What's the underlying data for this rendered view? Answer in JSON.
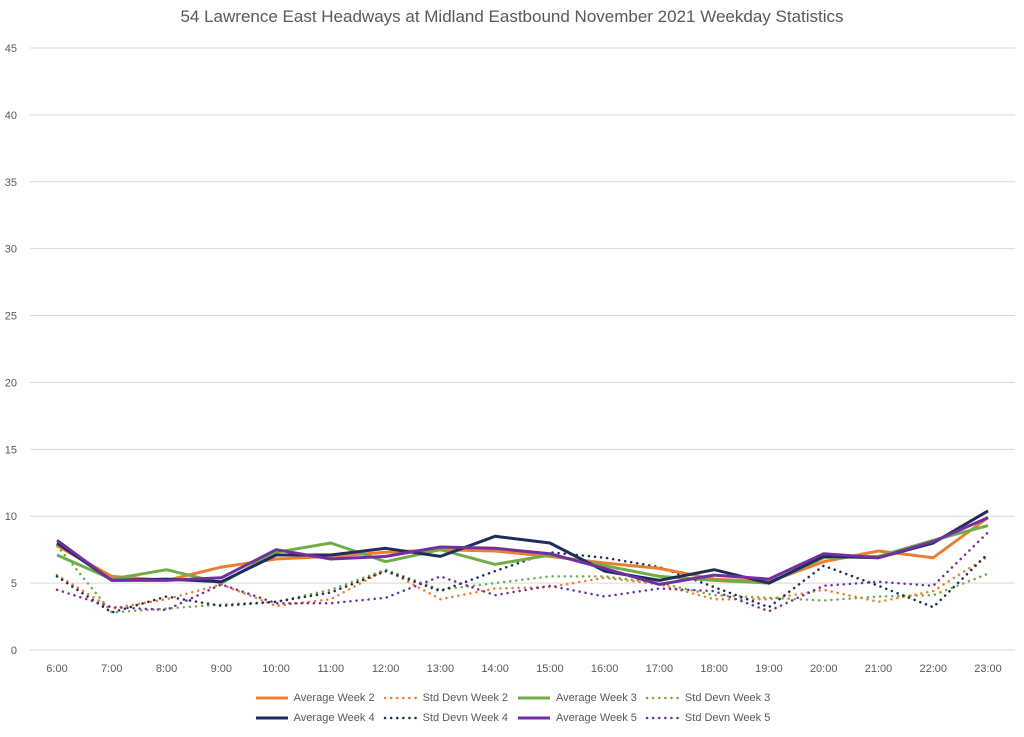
{
  "chart_data": {
    "type": "line",
    "title": "54 Lawrence East Headways at Midland Eastbound November 2021 Weekday Statistics",
    "xlabel": "",
    "ylabel": "",
    "ylim": [
      0,
      45
    ],
    "yticks": [
      "0",
      "5",
      "10",
      "15",
      "20",
      "25",
      "30",
      "35",
      "40",
      "45"
    ],
    "ytick_values": [
      0,
      5,
      10,
      15,
      20,
      25,
      30,
      35,
      40,
      45
    ],
    "grid": true,
    "legend_position": "bottom",
    "categories": [
      "6:00",
      "7:00",
      "8:00",
      "9:00",
      "10:00",
      "11:00",
      "12:00",
      "13:00",
      "14:00",
      "15:00",
      "16:00",
      "17:00",
      "18:00",
      "19:00",
      "20:00",
      "21:00",
      "22:00",
      "23:00"
    ],
    "series": [
      {
        "name": "Average Week 2",
        "color": "#ED7D31",
        "style": "solid",
        "values": [
          7.8,
          5.5,
          5.2,
          6.2,
          6.8,
          7.0,
          7.3,
          7.5,
          7.4,
          7.0,
          6.5,
          6.1,
          5.3,
          5.1,
          6.6,
          7.4,
          6.9,
          9.9
        ]
      },
      {
        "name": "Std Devn Week 2",
        "color": "#ED7D31",
        "style": "dotted",
        "values": [
          5.6,
          3.1,
          3.8,
          4.9,
          3.3,
          3.8,
          6.0,
          3.8,
          4.6,
          4.7,
          5.4,
          4.9,
          3.8,
          3.8,
          4.5,
          3.6,
          4.4,
          7.0
        ]
      },
      {
        "name": "Average Week 3",
        "color": "#70AD47",
        "style": "solid",
        "values": [
          7.1,
          5.3,
          6.0,
          5.0,
          7.3,
          8.0,
          6.6,
          7.5,
          6.4,
          7.1,
          6.3,
          5.5,
          5.2,
          5.0,
          6.9,
          7.0,
          8.2,
          9.3
        ]
      },
      {
        "name": "Std Devn Week 3",
        "color": "#70AD47",
        "style": "dotted",
        "values": [
          7.8,
          2.8,
          3.1,
          3.4,
          3.6,
          4.5,
          6.0,
          4.5,
          5.0,
          5.5,
          5.5,
          5.0,
          4.1,
          3.9,
          3.7,
          4.0,
          4.1,
          5.7
        ]
      },
      {
        "name": "Average Week 4",
        "color": "#1F2D5C",
        "style": "solid",
        "values": [
          8.0,
          5.2,
          5.3,
          5.1,
          7.1,
          7.1,
          7.6,
          7.0,
          8.5,
          8.0,
          5.9,
          5.2,
          6.0,
          5.0,
          7.0,
          6.9,
          8.0,
          10.4
        ]
      },
      {
        "name": "Std Devn Week 4",
        "color": "#1F2D5C",
        "style": "dotted",
        "values": [
          5.5,
          2.8,
          4.0,
          3.3,
          3.6,
          4.3,
          5.9,
          4.4,
          5.9,
          7.3,
          6.9,
          6.2,
          4.7,
          3.2,
          6.3,
          4.8,
          3.2,
          7.2
        ]
      },
      {
        "name": "Average Week 5",
        "color": "#7030A0",
        "style": "solid",
        "values": [
          8.2,
          5.2,
          5.2,
          5.4,
          7.5,
          6.8,
          7.0,
          7.7,
          7.6,
          7.2,
          6.1,
          4.9,
          5.6,
          5.3,
          7.2,
          6.9,
          8.1,
          9.9
        ]
      },
      {
        "name": "Std Devn Week 5",
        "color": "#7030A0",
        "style": "dotted",
        "values": [
          4.5,
          3.2,
          3.0,
          4.9,
          3.5,
          3.5,
          3.9,
          5.5,
          4.1,
          4.8,
          4.0,
          4.6,
          4.4,
          2.9,
          4.8,
          5.1,
          4.8,
          8.8
        ]
      }
    ]
  }
}
